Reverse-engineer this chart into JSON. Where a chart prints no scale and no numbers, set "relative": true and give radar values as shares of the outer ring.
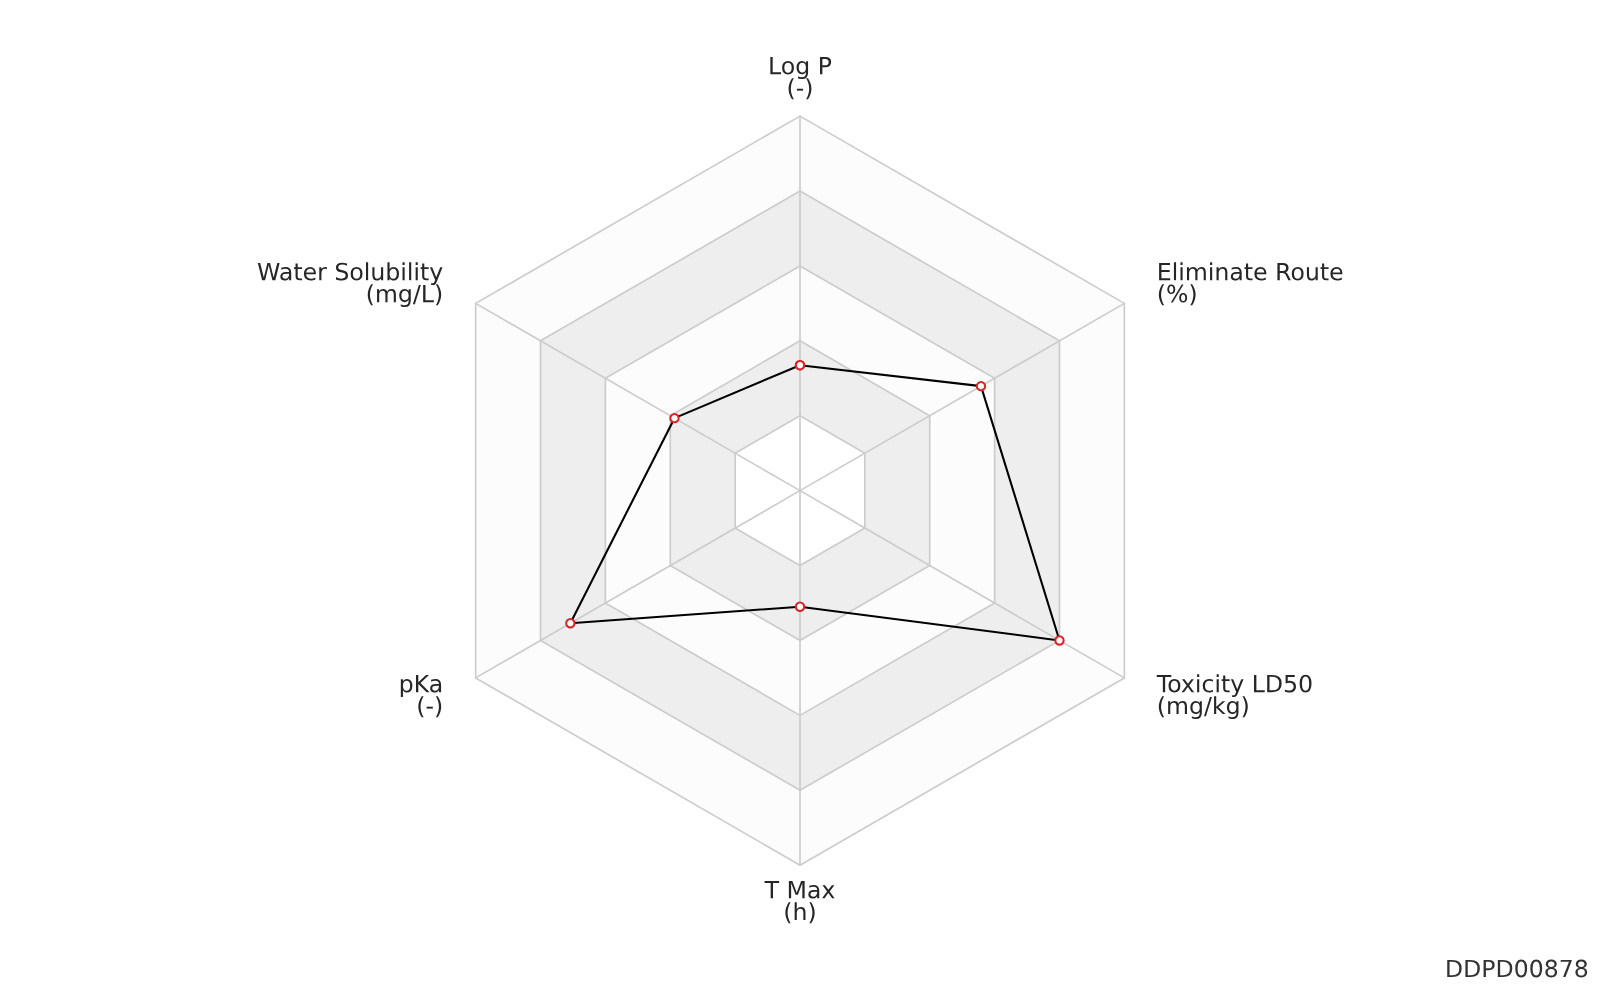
{
  "chart_data": {
    "type": "radar",
    "relative": true,
    "categories": [
      "Log P\n(-)",
      "Eliminate Route\n(%)",
      "Toxicity LD50\n(mg/kg)",
      "T Max\n(h)",
      "pKa\n(-)",
      "Water Solubility\n(mg/L)"
    ],
    "series": [
      {
        "color": "#000000",
        "values": [
          0.335,
          0.558,
          0.8,
          0.31,
          0.708,
          0.387
        ]
      }
    ],
    "marker": "circle",
    "grid": true,
    "legend": false,
    "annotations": [
      "DDPD00878"
    ]
  }
}
